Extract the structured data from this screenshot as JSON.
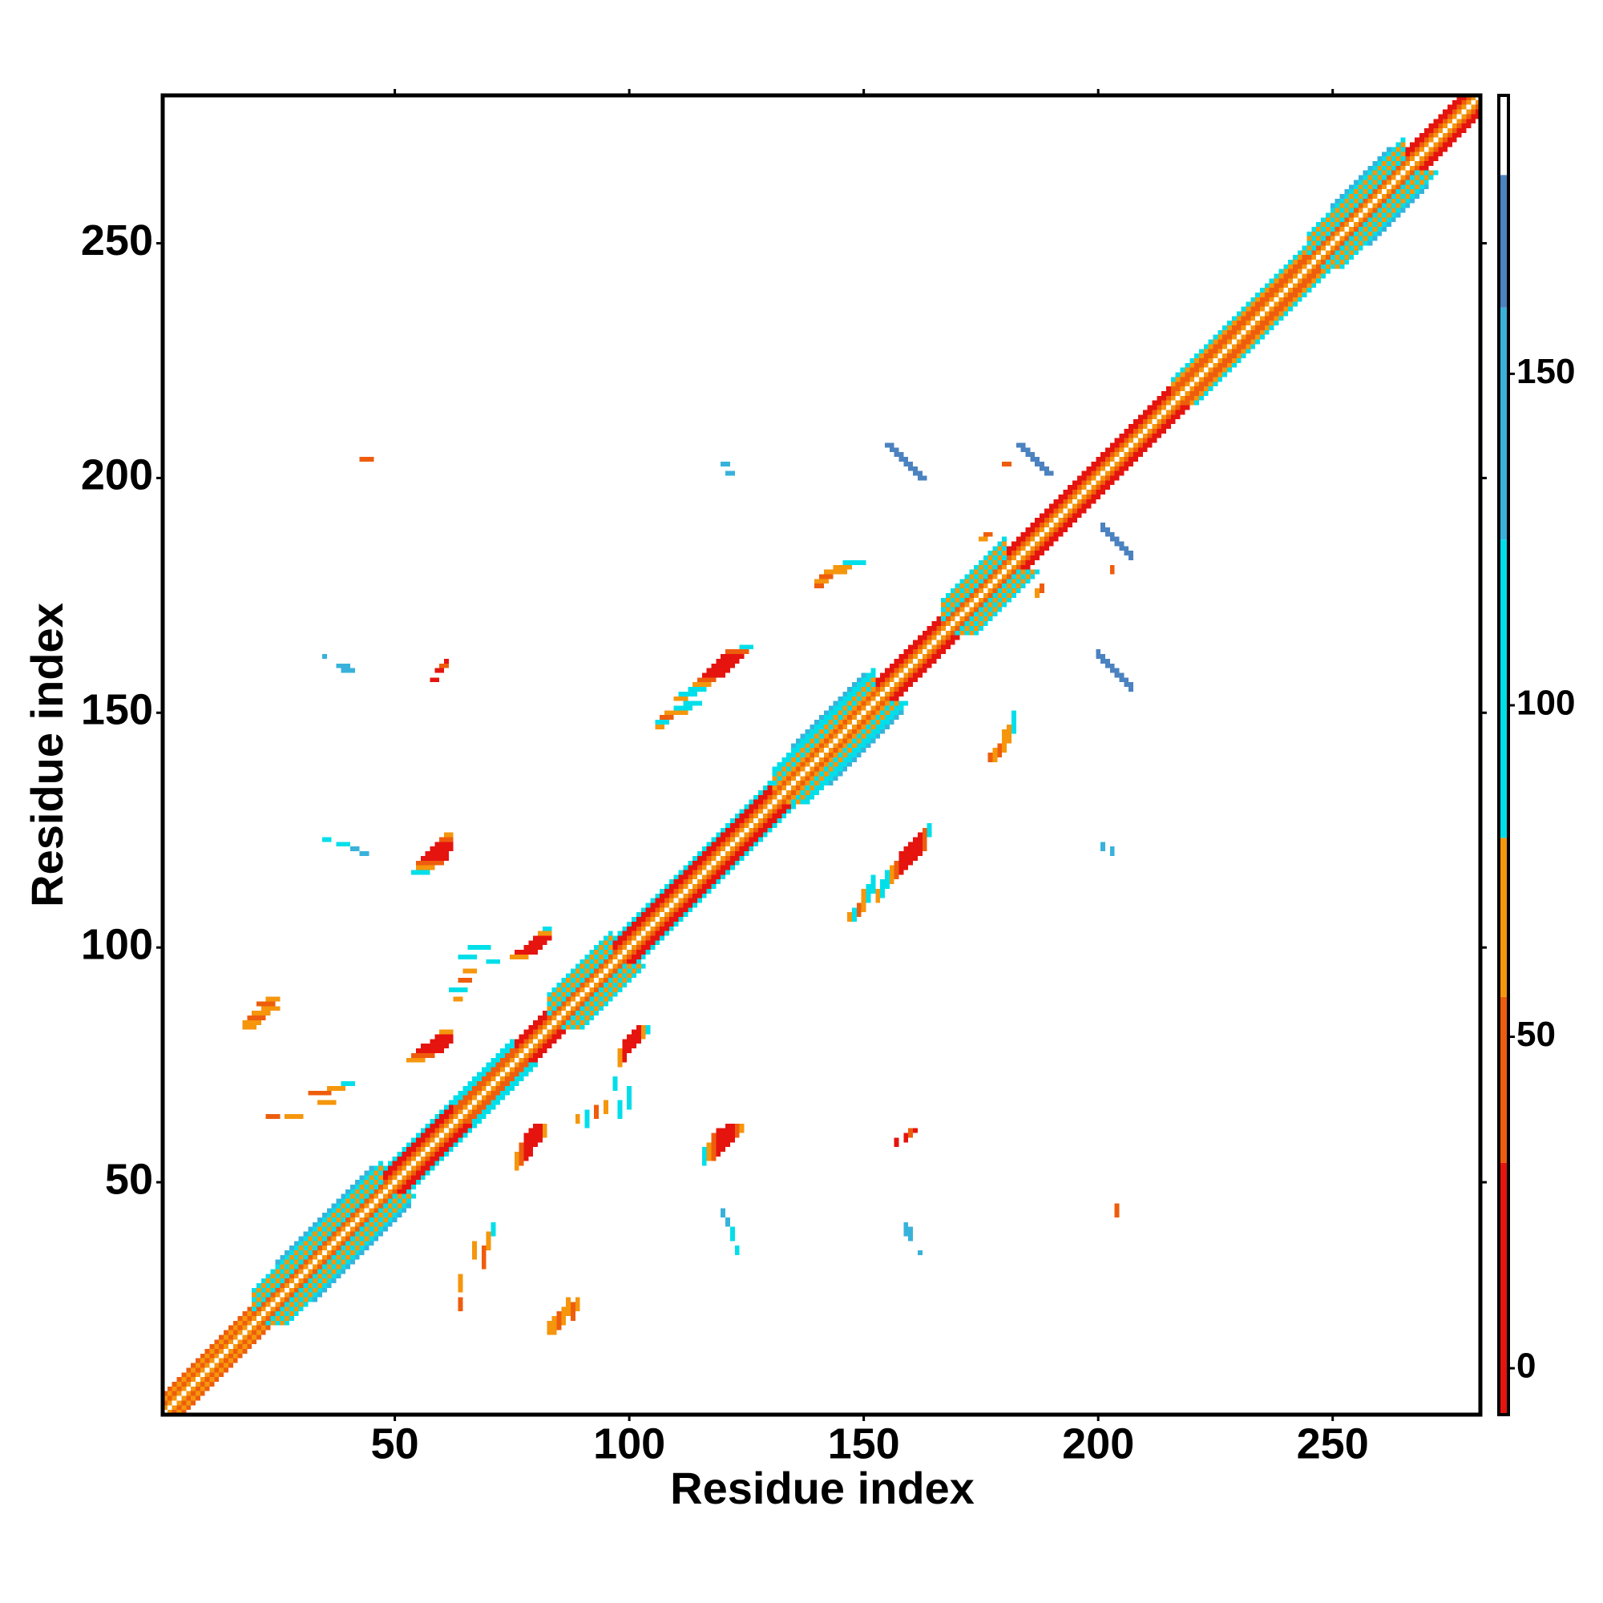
{
  "chart_data": {
    "type": "heatmap",
    "symmetric": true,
    "x_label": "Residue index",
    "y_label": "Residue index",
    "xlim": [
      0.5,
      281.5
    ],
    "ylim": [
      0.5,
      281.5
    ],
    "xticks": [
      50,
      100,
      150,
      200,
      250
    ],
    "yticks": [
      50,
      100,
      150,
      200,
      250
    ],
    "clim": [
      -7,
      192
    ],
    "colorbar_ticks": [
      0,
      50,
      100,
      150
    ],
    "color_bins": {
      "edges": [
        -7,
        31,
        56,
        80,
        125,
        160,
        180,
        192
      ],
      "colors": [
        "#e5140f",
        "#ee5d0d",
        "#f5960c",
        "#00dfe9",
        "#38b2da",
        "#4b82c0",
        "#ffffff"
      ]
    },
    "diagonals": [
      {
        "offset": 1,
        "start": 1,
        "end": 280,
        "value": 65
      },
      {
        "offset": 2,
        "start": 1,
        "end": 279,
        "value": 45
      },
      {
        "offset": 3,
        "start": 1,
        "end": 19,
        "value": 60
      },
      {
        "offset": 3,
        "start": 20,
        "end": 47,
        "value": 110
      },
      {
        "offset": 3,
        "start": 48,
        "end": 62,
        "value": 10
      },
      {
        "offset": 3,
        "start": 63,
        "end": 75,
        "value": 40
      },
      {
        "offset": 3,
        "start": 76,
        "end": 82,
        "value": 10
      },
      {
        "offset": 3,
        "start": 83,
        "end": 96,
        "value": 110
      },
      {
        "offset": 3,
        "start": 97,
        "end": 130,
        "value": 10
      },
      {
        "offset": 3,
        "start": 131,
        "end": 152,
        "value": 60
      },
      {
        "offset": 3,
        "start": 153,
        "end": 166,
        "value": 10
      },
      {
        "offset": 3,
        "start": 167,
        "end": 180,
        "value": 110
      },
      {
        "offset": 3,
        "start": 181,
        "end": 215,
        "value": 10
      },
      {
        "offset": 3,
        "start": 216,
        "end": 244,
        "value": 40
      },
      {
        "offset": 3,
        "start": 245,
        "end": 265,
        "value": 110
      },
      {
        "offset": 3,
        "start": 266,
        "end": 278,
        "value": 10
      },
      {
        "offset": 4,
        "start": 1,
        "end": 19,
        "value": 40
      },
      {
        "offset": 4,
        "start": 20,
        "end": 47,
        "value": 60
      },
      {
        "offset": 4,
        "start": 48,
        "end": 62,
        "value": 20
      },
      {
        "offset": 4,
        "start": 63,
        "end": 75,
        "value": 110
      },
      {
        "offset": 4,
        "start": 76,
        "end": 82,
        "value": 20
      },
      {
        "offset": 4,
        "start": 83,
        "end": 96,
        "value": 60
      },
      {
        "offset": 4,
        "start": 97,
        "end": 130,
        "value": 20
      },
      {
        "offset": 4,
        "start": 131,
        "end": 152,
        "value": 110
      },
      {
        "offset": 4,
        "start": 153,
        "end": 166,
        "value": 20
      },
      {
        "offset": 4,
        "start": 167,
        "end": 180,
        "value": 60
      },
      {
        "offset": 4,
        "start": 181,
        "end": 215,
        "value": 30
      },
      {
        "offset": 4,
        "start": 216,
        "end": 244,
        "value": 60
      },
      {
        "offset": 4,
        "start": 245,
        "end": 265,
        "value": 60
      },
      {
        "offset": 4,
        "start": 266,
        "end": 277,
        "value": 30
      },
      {
        "offset": 5,
        "start": 20,
        "end": 47,
        "value": 110
      },
      {
        "offset": 5,
        "start": 48,
        "end": 62,
        "value": 110
      },
      {
        "offset": 5,
        "start": 63,
        "end": 75,
        "value": 110
      },
      {
        "offset": 5,
        "start": 83,
        "end": 96,
        "value": 110
      },
      {
        "offset": 5,
        "start": 97,
        "end": 130,
        "value": 110
      },
      {
        "offset": 5,
        "start": 131,
        "end": 152,
        "value": 60
      },
      {
        "offset": 5,
        "start": 167,
        "end": 180,
        "value": 110
      },
      {
        "offset": 5,
        "start": 216,
        "end": 244,
        "value": 110
      },
      {
        "offset": 5,
        "start": 245,
        "end": 265,
        "value": 110
      },
      {
        "offset": 6,
        "start": 20,
        "end": 47,
        "value": 60
      },
      {
        "offset": 6,
        "start": 83,
        "end": 96,
        "value": 60
      },
      {
        "offset": 6,
        "start": 131,
        "end": 152,
        "value": 110
      },
      {
        "offset": 6,
        "start": 167,
        "end": 180,
        "value": 60
      },
      {
        "offset": 6,
        "start": 245,
        "end": 265,
        "value": 60
      },
      {
        "offset": 7,
        "start": 20,
        "end": 47,
        "value": 110
      },
      {
        "offset": 7,
        "start": 83,
        "end": 96,
        "value": 110
      },
      {
        "offset": 7,
        "start": 131,
        "end": 152,
        "value": 110
      },
      {
        "offset": 7,
        "start": 167,
        "end": 180,
        "value": 110
      },
      {
        "offset": 7,
        "start": 245,
        "end": 265,
        "value": 110
      },
      {
        "offset": 8,
        "start": 25,
        "end": 45,
        "value": 130
      },
      {
        "offset": 8,
        "start": 135,
        "end": 150,
        "value": 130
      },
      {
        "offset": 8,
        "start": 250,
        "end": 262,
        "value": 130
      }
    ],
    "runs": [
      {
        "row": 124,
        "start": 61,
        "end": 62,
        "value": 60
      },
      {
        "row": 123,
        "start": 60,
        "end": 62,
        "value": 40
      },
      {
        "row": 122,
        "start": 59,
        "end": 62,
        "value": 20
      },
      {
        "row": 121,
        "start": 58,
        "end": 62,
        "value": 10
      },
      {
        "row": 120,
        "start": 57,
        "end": 61,
        "value": 10
      },
      {
        "row": 119,
        "start": 56,
        "end": 61,
        "value": 10
      },
      {
        "row": 118,
        "start": 55,
        "end": 60,
        "value": 40
      },
      {
        "row": 117,
        "start": 55,
        "end": 58,
        "value": 60
      },
      {
        "row": 116,
        "start": 54,
        "end": 57,
        "value": 100
      },
      {
        "row": 82,
        "start": 60,
        "end": 62,
        "value": 60
      },
      {
        "row": 81,
        "start": 59,
        "end": 62,
        "value": 20
      },
      {
        "row": 80,
        "start": 58,
        "end": 62,
        "value": 10
      },
      {
        "row": 79,
        "start": 56,
        "end": 61,
        "value": 10
      },
      {
        "row": 78,
        "start": 55,
        "end": 60,
        "value": 10
      },
      {
        "row": 77,
        "start": 54,
        "end": 58,
        "value": 40
      },
      {
        "row": 76,
        "start": 53,
        "end": 56,
        "value": 60
      },
      {
        "row": 104,
        "start": 82,
        "end": 83,
        "value": 100
      },
      {
        "row": 103,
        "start": 81,
        "end": 83,
        "value": 60
      },
      {
        "row": 102,
        "start": 80,
        "end": 83,
        "value": 20
      },
      {
        "row": 101,
        "start": 79,
        "end": 82,
        "value": 10
      },
      {
        "row": 100,
        "start": 78,
        "end": 81,
        "value": 10
      },
      {
        "row": 99,
        "start": 76,
        "end": 80,
        "value": 20
      },
      {
        "row": 98,
        "start": 75,
        "end": 78,
        "value": 60
      },
      {
        "row": 164,
        "start": 124,
        "end": 126,
        "value": 100
      },
      {
        "row": 163,
        "start": 121,
        "end": 125,
        "value": 40
      },
      {
        "row": 162,
        "start": 120,
        "end": 124,
        "value": 20
      },
      {
        "row": 161,
        "start": 119,
        "end": 123,
        "value": 10
      },
      {
        "row": 160,
        "start": 118,
        "end": 122,
        "value": 10
      },
      {
        "row": 159,
        "start": 117,
        "end": 121,
        "value": 10
      },
      {
        "row": 158,
        "start": 116,
        "end": 120,
        "value": 20
      },
      {
        "row": 157,
        "start": 115,
        "end": 118,
        "value": 40
      },
      {
        "row": 156,
        "start": 114,
        "end": 117,
        "value": 60
      },
      {
        "row": 155,
        "start": 113,
        "end": 116,
        "value": 100
      },
      {
        "row": 154,
        "start": 111,
        "end": 114,
        "value": 100
      },
      {
        "row": 153,
        "start": 110,
        "end": 112,
        "value": 60
      },
      {
        "row": 207,
        "start": 155,
        "end": 156,
        "value": 170
      },
      {
        "row": 206,
        "start": 156,
        "end": 157,
        "value": 170
      },
      {
        "row": 205,
        "start": 157,
        "end": 158,
        "value": 170
      },
      {
        "row": 204,
        "start": 158,
        "end": 159,
        "value": 170
      },
      {
        "row": 203,
        "start": 159,
        "end": 160,
        "value": 170
      },
      {
        "row": 202,
        "start": 160,
        "end": 161,
        "value": 170
      },
      {
        "row": 201,
        "start": 161,
        "end": 162,
        "value": 170
      },
      {
        "row": 200,
        "start": 162,
        "end": 163,
        "value": 170
      },
      {
        "row": 207,
        "start": 183,
        "end": 184,
        "value": 170
      },
      {
        "row": 206,
        "start": 184,
        "end": 185,
        "value": 170
      },
      {
        "row": 205,
        "start": 185,
        "end": 186,
        "value": 170
      },
      {
        "row": 204,
        "start": 186,
        "end": 187,
        "value": 170
      },
      {
        "row": 203,
        "start": 187,
        "end": 188,
        "value": 170
      },
      {
        "row": 202,
        "start": 188,
        "end": 189,
        "value": 170
      },
      {
        "row": 201,
        "start": 189,
        "end": 190,
        "value": 170
      },
      {
        "row": 89,
        "start": 23,
        "end": 25,
        "value": 60
      },
      {
        "row": 88,
        "start": 21,
        "end": 24,
        "value": 40
      },
      {
        "row": 87,
        "start": 22,
        "end": 25,
        "value": 60
      },
      {
        "row": 86,
        "start": 20,
        "end": 23,
        "value": 65
      },
      {
        "row": 85,
        "start": 19,
        "end": 22,
        "value": 40
      },
      {
        "row": 84,
        "start": 18,
        "end": 21,
        "value": 60
      },
      {
        "row": 83,
        "start": 18,
        "end": 20,
        "value": 70
      },
      {
        "row": 204,
        "start": 43,
        "end": 45,
        "value": 50
      },
      {
        "row": 162,
        "start": 35,
        "end": 35,
        "value": 130
      },
      {
        "row": 160,
        "start": 38,
        "end": 40,
        "value": 130
      },
      {
        "row": 159,
        "start": 39,
        "end": 41,
        "value": 130
      },
      {
        "row": 161,
        "start": 61,
        "end": 61,
        "value": 20
      },
      {
        "row": 160,
        "start": 60,
        "end": 61,
        "value": 40
      },
      {
        "row": 159,
        "start": 59,
        "end": 60,
        "value": 30
      },
      {
        "row": 157,
        "start": 58,
        "end": 59,
        "value": 20
      },
      {
        "row": 123,
        "start": 35,
        "end": 36,
        "value": 120
      },
      {
        "row": 122,
        "start": 38,
        "end": 40,
        "value": 120
      },
      {
        "row": 121,
        "start": 41,
        "end": 42,
        "value": 130
      },
      {
        "row": 120,
        "start": 43,
        "end": 44,
        "value": 130
      },
      {
        "row": 152,
        "start": 112,
        "end": 115,
        "value": 110
      },
      {
        "row": 151,
        "start": 110,
        "end": 113,
        "value": 100
      },
      {
        "row": 150,
        "start": 108,
        "end": 112,
        "value": 60
      },
      {
        "row": 149,
        "start": 107,
        "end": 109,
        "value": 40
      },
      {
        "row": 148,
        "start": 106,
        "end": 108,
        "value": 110
      },
      {
        "row": 147,
        "start": 106,
        "end": 107,
        "value": 60
      },
      {
        "row": 182,
        "start": 146,
        "end": 150,
        "value": 110
      },
      {
        "row": 181,
        "start": 144,
        "end": 147,
        "value": 70
      },
      {
        "row": 180,
        "start": 142,
        "end": 146,
        "value": 60
      },
      {
        "row": 179,
        "start": 141,
        "end": 143,
        "value": 40
      },
      {
        "row": 178,
        "start": 140,
        "end": 142,
        "value": 60
      },
      {
        "row": 177,
        "start": 140,
        "end": 141,
        "value": 40
      },
      {
        "row": 71,
        "start": 39,
        "end": 41,
        "value": 110
      },
      {
        "row": 70,
        "start": 36,
        "end": 39,
        "value": 60
      },
      {
        "row": 69,
        "start": 32,
        "end": 36,
        "value": 40
      },
      {
        "row": 67,
        "start": 34,
        "end": 37,
        "value": 60
      },
      {
        "row": 64,
        "start": 23,
        "end": 25,
        "value": 50
      },
      {
        "row": 64,
        "start": 27,
        "end": 30,
        "value": 60
      },
      {
        "row": 95,
        "start": 65,
        "end": 67,
        "value": 60
      },
      {
        "row": 93,
        "start": 64,
        "end": 66,
        "value": 40
      },
      {
        "row": 91,
        "start": 62,
        "end": 65,
        "value": 110
      },
      {
        "row": 89,
        "start": 63,
        "end": 64,
        "value": 60
      },
      {
        "row": 100,
        "start": 66,
        "end": 70,
        "value": 110
      },
      {
        "row": 98,
        "start": 64,
        "end": 67,
        "value": 110
      },
      {
        "row": 97,
        "start": 70,
        "end": 72,
        "value": 110
      },
      {
        "row": 203,
        "start": 120,
        "end": 121,
        "value": 130
      },
      {
        "row": 201,
        "start": 121,
        "end": 122,
        "value": 130
      },
      {
        "row": 203,
        "start": 180,
        "end": 181,
        "value": 50
      },
      {
        "row": 188,
        "start": 176,
        "end": 177,
        "value": 40
      },
      {
        "row": 187,
        "start": 175,
        "end": 176,
        "value": 60
      }
    ]
  }
}
